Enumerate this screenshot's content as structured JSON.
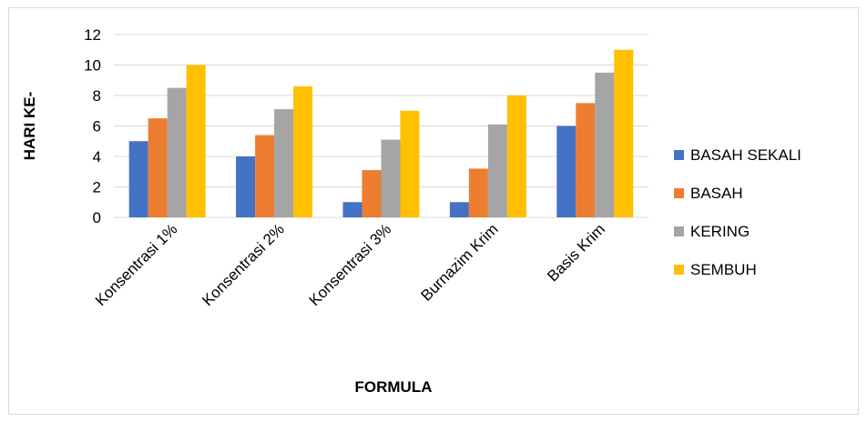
{
  "chart_data": {
    "type": "bar",
    "title": "",
    "xlabel": "FORMULA",
    "ylabel": "HARI KE-",
    "ylim": [
      0,
      12
    ],
    "yticks": [
      0,
      2,
      4,
      6,
      8,
      10,
      12
    ],
    "grid": true,
    "legend_position": "right",
    "categories": [
      "Konsentrasi 1%",
      "Konsentrasi 2%",
      "Konsentrasi 3%",
      "Burnazim Krim",
      "Basis Krim"
    ],
    "series": [
      {
        "name": "BASAH SEKALI",
        "color": "#4472c4",
        "values": [
          5,
          4,
          1,
          1,
          6
        ]
      },
      {
        "name": "BASAH",
        "color": "#ed7d31",
        "values": [
          6.5,
          5.4,
          3.1,
          3.2,
          7.5
        ]
      },
      {
        "name": "KERING",
        "color": "#a5a5a5",
        "values": [
          8.5,
          7.1,
          5.1,
          6.1,
          9.5
        ]
      },
      {
        "name": "SEMBUH",
        "color": "#ffc000",
        "values": [
          10,
          8.6,
          7,
          8,
          11
        ]
      }
    ]
  }
}
